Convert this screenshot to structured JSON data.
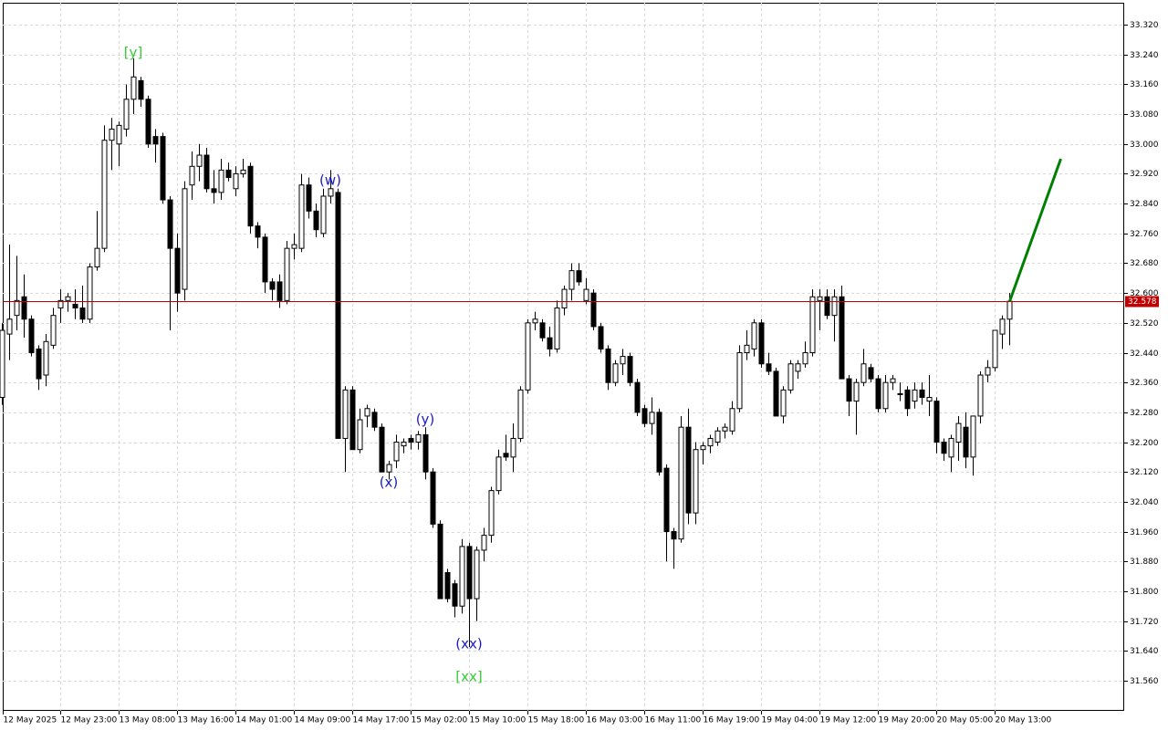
{
  "chart_data": {
    "type": "candlestick",
    "categories": [
      "12 May 2025",
      null,
      null,
      null,
      null,
      null,
      null,
      null,
      "12 May 23:00",
      null,
      null,
      null,
      null,
      null,
      null,
      null,
      "13 May 08:00",
      null,
      null,
      null,
      null,
      null,
      null,
      null,
      "13 May 16:00",
      null,
      null,
      null,
      null,
      null,
      null,
      null,
      "14 May 01:00",
      null,
      null,
      null,
      null,
      null,
      null,
      null,
      "14 May 09:00",
      null,
      null,
      null,
      null,
      null,
      null,
      null,
      "14 May 17:00",
      null,
      null,
      null,
      null,
      null,
      null,
      null,
      "15 May 02:00",
      null,
      null,
      null,
      null,
      null,
      null,
      null,
      "15 May 10:00",
      null,
      null,
      null,
      null,
      null,
      null,
      null,
      "15 May 18:00",
      null,
      null,
      null,
      null,
      null,
      null,
      null,
      "16 May 03:00",
      null,
      null,
      null,
      null,
      null,
      null,
      null,
      "16 May 11:00",
      null,
      null,
      null,
      null,
      null,
      null,
      null,
      "16 May 19:00",
      null,
      null,
      null,
      null,
      null,
      null,
      null,
      "19 May 04:00",
      null,
      null,
      null,
      null,
      null,
      null,
      null,
      "19 May 12:00",
      null,
      null,
      null,
      null,
      null,
      null,
      null,
      "19 May 20:00",
      null,
      null,
      null,
      null,
      null,
      null,
      null,
      "20 May 05:00",
      null,
      null,
      null,
      null,
      null,
      null,
      null,
      "20 May 13:00",
      null,
      null,
      null,
      null,
      null,
      null,
      null,
      null,
      null,
      null,
      null,
      null,
      null,
      null,
      null,
      null,
      null
    ],
    "ohlc": [
      [
        32.32,
        32.52,
        32.3,
        32.5
      ],
      [
        32.49,
        32.73,
        32.42,
        32.53
      ],
      [
        32.54,
        32.7,
        32.5,
        32.58
      ],
      [
        32.59,
        32.65,
        32.48,
        32.53
      ],
      [
        32.53,
        32.54,
        32.43,
        32.44
      ],
      [
        32.45,
        32.46,
        32.34,
        32.37
      ],
      [
        32.38,
        32.49,
        32.35,
        32.47
      ],
      [
        32.46,
        32.56,
        32.45,
        32.54
      ],
      [
        32.56,
        32.61,
        32.52,
        32.58
      ],
      [
        32.58,
        32.6,
        32.55,
        32.59
      ],
      [
        32.57,
        32.61,
        32.53,
        32.56
      ],
      [
        32.56,
        32.62,
        32.52,
        32.53
      ],
      [
        32.53,
        32.68,
        32.52,
        32.67
      ],
      [
        32.67,
        32.82,
        32.66,
        32.72
      ],
      [
        32.72,
        33.05,
        32.71,
        33.01
      ],
      [
        33.01,
        33.07,
        32.93,
        33.04
      ],
      [
        33.0,
        33.06,
        32.94,
        33.05
      ],
      [
        33.04,
        33.16,
        33.02,
        33.12
      ],
      [
        33.12,
        33.23,
        33.08,
        33.18
      ],
      [
        33.17,
        33.18,
        33.1,
        33.12
      ],
      [
        33.12,
        33.13,
        32.99,
        33.0
      ],
      [
        33.02,
        33.04,
        32.95,
        33.0
      ],
      [
        33.02,
        33.03,
        32.84,
        32.85
      ],
      [
        32.85,
        32.86,
        32.5,
        32.72
      ],
      [
        32.72,
        32.76,
        32.55,
        32.6
      ],
      [
        32.61,
        32.9,
        32.58,
        32.88
      ],
      [
        32.89,
        32.98,
        32.85,
        32.94
      ],
      [
        32.94,
        33.0,
        32.9,
        32.97
      ],
      [
        32.97,
        32.99,
        32.87,
        32.88
      ],
      [
        32.88,
        32.93,
        32.84,
        32.87
      ],
      [
        32.87,
        32.96,
        32.85,
        32.93
      ],
      [
        32.93,
        32.95,
        32.9,
        32.91
      ],
      [
        32.88,
        32.94,
        32.86,
        32.92
      ],
      [
        32.92,
        32.96,
        32.91,
        32.93
      ],
      [
        32.94,
        32.95,
        32.76,
        32.78
      ],
      [
        32.78,
        32.79,
        32.72,
        32.75
      ],
      [
        32.75,
        32.76,
        32.6,
        32.63
      ],
      [
        32.63,
        32.64,
        32.58,
        32.61
      ],
      [
        32.63,
        32.65,
        32.56,
        32.58
      ],
      [
        32.58,
        32.74,
        32.57,
        32.72
      ],
      [
        32.72,
        32.76,
        32.69,
        32.73
      ],
      [
        32.72,
        32.92,
        32.71,
        32.89
      ],
      [
        32.89,
        32.91,
        32.8,
        32.82
      ],
      [
        32.82,
        32.84,
        32.75,
        32.77
      ],
      [
        32.76,
        32.88,
        32.75,
        32.86
      ],
      [
        32.86,
        32.93,
        32.84,
        32.88
      ],
      [
        32.87,
        32.88,
        32.21,
        32.21
      ],
      [
        32.21,
        32.35,
        32.12,
        32.34
      ],
      [
        32.34,
        32.35,
        32.18,
        32.18
      ],
      [
        32.18,
        32.29,
        32.17,
        32.26
      ],
      [
        32.27,
        32.3,
        32.24,
        32.29
      ],
      [
        32.28,
        32.29,
        32.23,
        32.24
      ],
      [
        32.24,
        32.25,
        32.12,
        32.12
      ],
      [
        32.12,
        32.15,
        32.1,
        32.14
      ],
      [
        32.15,
        32.22,
        32.13,
        32.2
      ],
      [
        32.19,
        32.21,
        32.17,
        32.2
      ],
      [
        32.21,
        32.22,
        32.18,
        32.2
      ],
      [
        32.2,
        32.23,
        32.18,
        32.22
      ],
      [
        32.22,
        32.24,
        32.1,
        32.12
      ],
      [
        32.12,
        32.13,
        31.97,
        31.98
      ],
      [
        31.98,
        31.99,
        31.78,
        31.78
      ],
      [
        31.85,
        31.86,
        31.77,
        31.78
      ],
      [
        31.82,
        31.83,
        31.73,
        31.76
      ],
      [
        31.76,
        31.94,
        31.74,
        31.92
      ],
      [
        31.92,
        31.93,
        31.65,
        31.78
      ],
      [
        31.78,
        31.92,
        31.72,
        31.91
      ],
      [
        31.91,
        31.97,
        31.88,
        31.95
      ],
      [
        31.95,
        32.08,
        31.93,
        32.07
      ],
      [
        32.07,
        32.18,
        32.06,
        32.16
      ],
      [
        32.17,
        32.22,
        32.15,
        32.16
      ],
      [
        32.16,
        32.25,
        32.12,
        32.21
      ],
      [
        32.21,
        32.35,
        32.2,
        32.34
      ],
      [
        32.34,
        32.53,
        32.33,
        32.52
      ],
      [
        32.52,
        32.55,
        32.5,
        32.53
      ],
      [
        32.52,
        32.53,
        32.47,
        32.48
      ],
      [
        32.48,
        32.51,
        32.43,
        32.45
      ],
      [
        32.45,
        32.58,
        32.44,
        32.56
      ],
      [
        32.56,
        32.62,
        32.54,
        32.61
      ],
      [
        32.61,
        32.68,
        32.58,
        32.66
      ],
      [
        32.66,
        32.68,
        32.62,
        32.63
      ],
      [
        32.58,
        32.64,
        32.57,
        32.61
      ],
      [
        32.6,
        32.61,
        32.5,
        32.51
      ],
      [
        32.51,
        32.52,
        32.44,
        32.45
      ],
      [
        32.45,
        32.46,
        32.34,
        32.36
      ],
      [
        32.36,
        32.42,
        32.35,
        32.41
      ],
      [
        32.41,
        32.45,
        32.38,
        32.43
      ],
      [
        32.43,
        32.44,
        32.35,
        32.36
      ],
      [
        32.36,
        32.37,
        32.27,
        32.28
      ],
      [
        32.29,
        32.3,
        32.24,
        32.25
      ],
      [
        32.25,
        32.32,
        32.22,
        32.28
      ],
      [
        32.28,
        32.29,
        32.11,
        32.12
      ],
      [
        32.13,
        32.14,
        31.88,
        31.96
      ],
      [
        31.96,
        31.97,
        31.86,
        31.94
      ],
      [
        31.94,
        32.27,
        31.93,
        32.24
      ],
      [
        32.24,
        32.29,
        31.98,
        32.01
      ],
      [
        32.01,
        32.2,
        31.98,
        32.18
      ],
      [
        32.18,
        32.2,
        32.14,
        32.19
      ],
      [
        32.19,
        32.22,
        32.17,
        32.21
      ],
      [
        32.2,
        32.24,
        32.19,
        32.23
      ],
      [
        32.23,
        32.25,
        32.21,
        32.24
      ],
      [
        32.23,
        32.31,
        32.22,
        32.29
      ],
      [
        32.29,
        32.46,
        32.28,
        32.44
      ],
      [
        32.44,
        32.5,
        32.42,
        32.46
      ],
      [
        32.45,
        32.53,
        32.43,
        32.52
      ],
      [
        32.52,
        32.53,
        32.4,
        32.41
      ],
      [
        32.41,
        32.44,
        32.38,
        32.39
      ],
      [
        32.39,
        32.4,
        32.27,
        32.27
      ],
      [
        32.27,
        32.35,
        32.25,
        32.34
      ],
      [
        32.34,
        32.42,
        32.33,
        32.41
      ],
      [
        32.39,
        32.42,
        32.37,
        32.41
      ],
      [
        32.41,
        32.47,
        32.4,
        32.44
      ],
      [
        32.44,
        32.61,
        32.43,
        32.59
      ],
      [
        32.58,
        32.61,
        32.5,
        32.59
      ],
      [
        32.59,
        32.61,
        32.53,
        32.54
      ],
      [
        32.54,
        32.61,
        32.47,
        32.59
      ],
      [
        32.59,
        32.62,
        32.37,
        32.37
      ],
      [
        32.37,
        32.38,
        32.27,
        32.31
      ],
      [
        32.31,
        32.37,
        32.22,
        32.36
      ],
      [
        32.36,
        32.45,
        32.35,
        32.41
      ],
      [
        32.4,
        32.41,
        32.36,
        32.37
      ],
      [
        32.37,
        32.38,
        32.28,
        32.29
      ],
      [
        32.29,
        32.38,
        32.28,
        32.36
      ],
      [
        32.36,
        32.38,
        32.34,
        32.37
      ],
      [
        32.33,
        32.36,
        32.31,
        32.33
      ],
      [
        32.34,
        32.35,
        32.27,
        32.29
      ],
      [
        32.31,
        32.36,
        32.29,
        32.34
      ],
      [
        32.34,
        32.36,
        32.3,
        32.32
      ],
      [
        32.31,
        32.38,
        32.27,
        32.32
      ],
      [
        32.31,
        32.32,
        32.17,
        32.2
      ],
      [
        32.2,
        32.21,
        32.15,
        32.17
      ],
      [
        32.16,
        32.22,
        32.12,
        32.21
      ],
      [
        32.2,
        32.27,
        32.15,
        32.25
      ],
      [
        32.24,
        32.28,
        32.13,
        32.16
      ],
      [
        32.16,
        32.27,
        32.11,
        32.27
      ],
      [
        32.27,
        32.39,
        32.25,
        32.38
      ],
      [
        32.38,
        32.42,
        32.36,
        32.4
      ],
      [
        32.4,
        32.49,
        32.39,
        32.5
      ],
      [
        32.49,
        32.54,
        32.45,
        32.53
      ],
      [
        32.53,
        32.6,
        32.46,
        32.578
      ],
      null,
      null,
      null,
      null,
      null,
      null,
      null,
      null,
      null,
      null,
      null,
      null,
      null,
      null,
      null
    ],
    "up_color": "#ffffff",
    "down_color": "#000000",
    "last_price": 32.578,
    "last_price_color": "#c00000",
    "forecast": {
      "color": "#008000",
      "x": [
        138,
        145
      ],
      "values": [
        32.578,
        32.96
      ]
    },
    "annotations": [
      {
        "text": "[y]",
        "color": "#32cd32"
      },
      {
        "text": "(w)",
        "color": "#1a1acd"
      },
      {
        "text": "(x)",
        "color": "#1a1acd"
      },
      {
        "text": "(y)",
        "color": "#1a1acd"
      },
      {
        "text": "(xx)",
        "color": "#1a1acd"
      },
      {
        "text": "[xx]",
        "color": "#32cd32"
      }
    ],
    "ylim": [
      31.479,
      33.379
    ],
    "yticks": [
      {
        "value": 31.56,
        "label": "31.560"
      },
      {
        "value": 31.64,
        "label": "31.640"
      },
      {
        "value": 31.72,
        "label": "31.720"
      },
      {
        "value": 31.8,
        "label": "31.800"
      },
      {
        "value": 31.88,
        "label": "31.880"
      },
      {
        "value": 31.96,
        "label": "31.960"
      },
      {
        "value": 32.04,
        "label": "32.040"
      },
      {
        "value": 32.12,
        "label": "32.120"
      },
      {
        "value": 32.2,
        "label": "32.200"
      },
      {
        "value": 32.28,
        "label": "32.280"
      },
      {
        "value": 32.36,
        "label": "32.360"
      },
      {
        "value": 32.44,
        "label": "32.440"
      },
      {
        "value": 32.52,
        "label": "32.520"
      },
      {
        "value": 32.6,
        "label": "32.600"
      },
      {
        "value": 32.68,
        "label": "32.680"
      },
      {
        "value": 32.76,
        "label": "32.760"
      },
      {
        "value": 32.84,
        "label": "32.840"
      },
      {
        "value": 32.92,
        "label": "32.920"
      },
      {
        "value": 33.0,
        "label": "33.000"
      },
      {
        "value": 33.08,
        "label": "33.080"
      },
      {
        "value": 33.16,
        "label": "33.160"
      },
      {
        "value": 33.24,
        "label": "33.240"
      },
      {
        "value": 33.32,
        "label": "33.320"
      }
    ],
    "grid": true
  }
}
